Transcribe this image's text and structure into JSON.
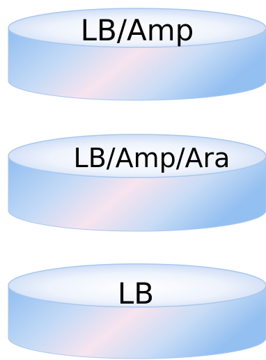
{
  "dishes": [
    {
      "label": "LB/Amp"
    },
    {
      "label": "LB/Amp/Ara"
    },
    {
      "label": "LB"
    }
  ],
  "colors": {
    "rim_outline": "#a9c8ee",
    "top_face_light": "#f4f7fc",
    "top_face_mid": "#cfdcf5",
    "wall_blue": "#9ec4f0",
    "wall_pink": "#f6e3ee",
    "text": "#000000"
  }
}
